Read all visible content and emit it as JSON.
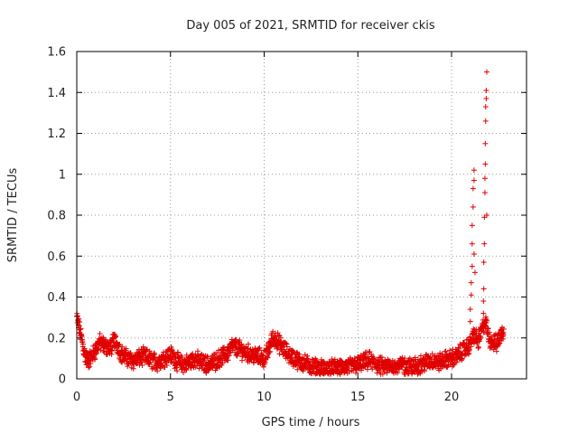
{
  "chart_data": {
    "type": "scatter",
    "title": "Day 005 of 2021, SRMTID for receiver ckis",
    "xlabel": "GPS time / hours",
    "ylabel": "SRMTID / TECUs",
    "xlim": [
      0,
      24
    ],
    "ylim": [
      0,
      1.6
    ],
    "x_ticks": [
      0,
      5,
      10,
      15,
      20
    ],
    "x_tick_labels": [
      "0",
      "5",
      "10",
      "15",
      "20"
    ],
    "y_ticks": [
      0,
      0.2,
      0.4,
      0.6,
      0.8,
      1.0,
      1.2,
      1.4,
      1.6
    ],
    "y_tick_labels": [
      "0",
      "0.2",
      "0.4",
      "0.6",
      "0.8",
      "1",
      "1.2",
      "1.4",
      "1.6"
    ],
    "grid": true,
    "marker": "+",
    "color": "#e00000",
    "series": [
      {
        "name": "SRMTID",
        "description": "dense scatter sampled along the observed trend",
        "x": [
          0.0,
          0.1,
          0.2,
          0.3,
          0.4,
          0.5,
          0.6,
          0.8,
          1.0,
          1.2,
          1.5,
          1.8,
          2.0,
          2.2,
          2.4,
          2.7,
          3.0,
          3.3,
          3.6,
          4.0,
          4.3,
          4.6,
          5.0,
          5.3,
          5.6,
          6.0,
          6.3,
          6.6,
          7.0,
          7.3,
          7.6,
          8.0,
          8.3,
          8.6,
          9.0,
          9.3,
          9.6,
          10.0,
          10.2,
          10.4,
          10.6,
          10.8,
          11.0,
          11.3,
          11.6,
          12.0,
          12.3,
          12.6,
          13.0,
          13.3,
          13.6,
          14.0,
          14.3,
          14.6,
          15.0,
          15.3,
          15.6,
          16.0,
          16.3,
          16.6,
          17.0,
          17.3,
          17.6,
          18.0,
          18.3,
          18.6,
          19.0,
          19.3,
          19.6,
          20.0,
          20.3,
          20.6,
          20.8,
          21.0,
          21.1,
          21.2,
          21.4,
          21.6,
          21.7,
          21.8,
          21.9,
          22.0,
          22.2,
          22.4,
          22.6,
          22.8
        ],
        "y": [
          0.3,
          0.26,
          0.22,
          0.18,
          0.13,
          0.1,
          0.09,
          0.11,
          0.14,
          0.18,
          0.16,
          0.15,
          0.19,
          0.16,
          0.12,
          0.1,
          0.09,
          0.1,
          0.11,
          0.09,
          0.08,
          0.1,
          0.12,
          0.09,
          0.07,
          0.08,
          0.1,
          0.08,
          0.07,
          0.08,
          0.1,
          0.12,
          0.16,
          0.15,
          0.13,
          0.12,
          0.11,
          0.1,
          0.13,
          0.19,
          0.2,
          0.17,
          0.15,
          0.12,
          0.1,
          0.08,
          0.07,
          0.06,
          0.05,
          0.05,
          0.06,
          0.05,
          0.06,
          0.06,
          0.07,
          0.08,
          0.09,
          0.07,
          0.06,
          0.06,
          0.06,
          0.07,
          0.06,
          0.06,
          0.07,
          0.08,
          0.09,
          0.08,
          0.09,
          0.1,
          0.11,
          0.14,
          0.15,
          0.17,
          0.2,
          0.22,
          0.18,
          0.23,
          0.26,
          0.28,
          0.24,
          0.2,
          0.18,
          0.17,
          0.21,
          0.24
        ]
      },
      {
        "name": "SRMTID spikes",
        "x": [
          21.0,
          21.0,
          21.05,
          21.05,
          21.1,
          21.1,
          21.1,
          21.15,
          21.15,
          21.2,
          21.2,
          21.2,
          21.25,
          21.7,
          21.7,
          21.72,
          21.72,
          21.75,
          21.75,
          21.78,
          21.78,
          21.8,
          21.8,
          21.82,
          21.82,
          21.85,
          21.85,
          21.88,
          21.88
        ],
        "y": [
          0.28,
          0.34,
          0.41,
          0.47,
          0.55,
          0.66,
          0.75,
          0.84,
          0.93,
          0.97,
          1.02,
          0.61,
          0.52,
          0.32,
          0.38,
          0.44,
          0.57,
          0.66,
          0.79,
          0.91,
          0.98,
          1.05,
          1.15,
          1.26,
          1.33,
          1.37,
          1.41,
          1.5,
          0.8
        ]
      }
    ]
  }
}
